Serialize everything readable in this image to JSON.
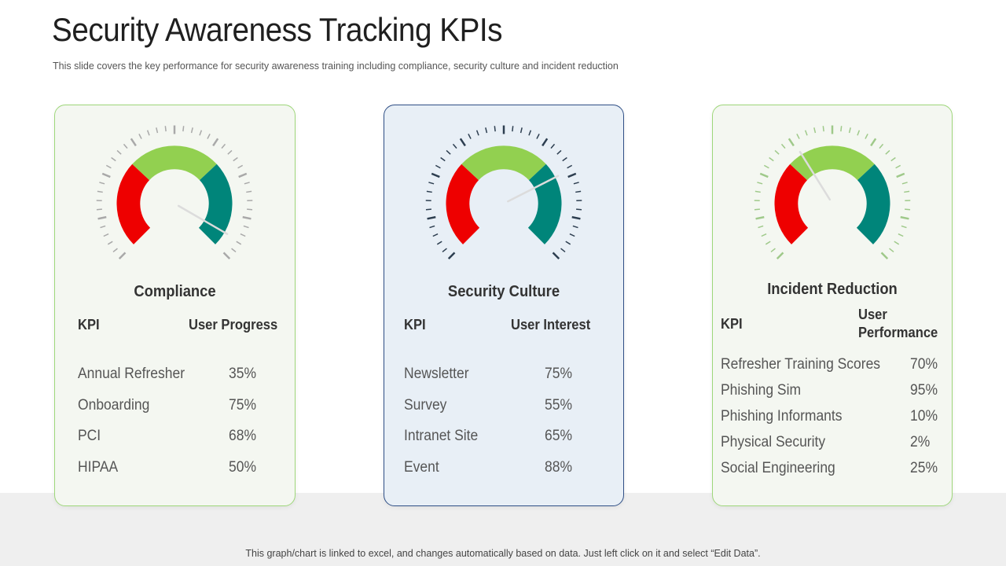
{
  "title": "Security Awareness Tracking KPIs",
  "subtitle": "This slide covers the key performance for security awareness training including compliance, security culture and incident reduction",
  "footer": "This graph/chart is linked to excel, and changes automatically based on data. Just left click on it and select “Edit Data”.",
  "colors": {
    "red": "#ee0000",
    "lightgreen": "#92d050",
    "teal": "#00857a"
  },
  "cards": [
    {
      "title": "Compliance",
      "kpi_header": "KPI",
      "value_header": "User Progress",
      "needle_angle_deg": 120,
      "rows": [
        {
          "label": "Annual Refresher",
          "value": "35%"
        },
        {
          "label": "Onboarding",
          "value": "75%"
        },
        {
          "label": "PCI",
          "value": "68%"
        },
        {
          "label": "HIPAA",
          "value": "50%"
        }
      ]
    },
    {
      "title": "Security Culture",
      "kpi_header": "KPI",
      "value_header": "User Interest",
      "needle_angle_deg": 63,
      "rows": [
        {
          "label": "Newsletter",
          "value": "75%"
        },
        {
          "label": "Survey",
          "value": "55%"
        },
        {
          "label": "Intranet Site",
          "value": "65%"
        },
        {
          "label": "Event",
          "value": "88%"
        }
      ]
    },
    {
      "title": "Incident Reduction",
      "kpi_header": "KPI",
      "value_header_line1": "User",
      "value_header_line2": "Performance",
      "needle_angle_deg": -32,
      "rows": [
        {
          "label": "Refresher Training Scores",
          "value": "70%"
        },
        {
          "label": "Phishing Sim",
          "value": "95%"
        },
        {
          "label": "Phishing Informants",
          "value": "10%"
        },
        {
          "label": "Physical Security",
          "value": "2%"
        },
        {
          "label": "Social Engineering",
          "value": "25%"
        }
      ]
    }
  ]
}
